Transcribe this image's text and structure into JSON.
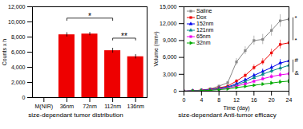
{
  "chart_data": [
    {
      "type": "bar",
      "categories": [
        "M(NIR)",
        "36nm",
        "72nm",
        "112nm",
        "136nm"
      ],
      "values": [
        null,
        8300,
        8400,
        6200,
        5400
      ],
      "errors": [
        null,
        280,
        220,
        320,
        280
      ],
      "color": "#EE0000",
      "ylabel": "Counts x h",
      "ylim": [
        0,
        12000
      ],
      "yticks": [
        0,
        2000,
        4000,
        6000,
        8000,
        10000,
        12000
      ],
      "caption": "size-dependant tumor distribution",
      "grid": false,
      "annotations": [
        {
          "text": "*",
          "x": [
            "36nm",
            "112nm"
          ],
          "y": [
            10200,
            10500
          ]
        },
        {
          "text": "**",
          "x": [
            "112nm",
            "136nm"
          ],
          "y": [
            7600,
            7850
          ]
        }
      ]
    },
    {
      "type": "line",
      "x": [
        0,
        2,
        4,
        6,
        8,
        10,
        12,
        14,
        16,
        18,
        20,
        22,
        24
      ],
      "series": [
        {
          "name": "Saline",
          "color": "#888888",
          "marker": "square",
          "values": [
            0,
            80,
            200,
            400,
            900,
            1500,
            5200,
            7200,
            9000,
            9200,
            10800,
            12500,
            12800
          ],
          "errors": [
            0,
            30,
            60,
            100,
            180,
            280,
            600,
            700,
            800,
            900,
            1000,
            1100,
            1400
          ]
        },
        {
          "name": "Dox",
          "color": "#EE0000",
          "marker": "square",
          "values": [
            0,
            80,
            180,
            350,
            600,
            900,
            1800,
            2800,
            4200,
            5200,
            6800,
            8300,
            8600
          ],
          "errors": [
            0,
            30,
            50,
            80,
            120,
            180,
            280,
            380,
            480,
            580,
            680,
            780,
            900
          ]
        },
        {
          "name": "152nm",
          "color": "#0000EE",
          "marker": "triangle",
          "values": [
            0,
            60,
            150,
            280,
            500,
            750,
            1300,
            2000,
            2800,
            3500,
            4200,
            5000,
            5400
          ],
          "errors": [
            0,
            25,
            45,
            70,
            110,
            160,
            220,
            280,
            380,
            460,
            560,
            660,
            760
          ]
        },
        {
          "name": "121nm",
          "color": "#008888",
          "marker": "triangle",
          "values": [
            0,
            55,
            130,
            250,
            450,
            680,
            1100,
            1700,
            2400,
            3000,
            3600,
            4100,
            4600
          ],
          "errors": [
            0,
            22,
            42,
            65,
            95,
            140,
            190,
            260,
            340,
            420,
            480,
            580,
            660
          ]
        },
        {
          "name": "65nm",
          "color": "#EE00EE",
          "marker": "square",
          "values": [
            0,
            50,
            110,
            210,
            360,
            560,
            900,
            1300,
            1750,
            2200,
            2600,
            2900,
            3100
          ],
          "errors": [
            0,
            18,
            35,
            55,
            80,
            120,
            165,
            220,
            280,
            350,
            400,
            450,
            520
          ]
        },
        {
          "name": "32nm",
          "color": "#00AA00",
          "marker": "triangle-right",
          "values": [
            0,
            40,
            90,
            160,
            270,
            410,
            640,
            840,
            1050,
            1250,
            1450,
            1650,
            1800
          ],
          "errors": [
            0,
            14,
            28,
            46,
            65,
            92,
            140,
            185,
            230,
            280,
            330,
            380,
            430
          ]
        }
      ],
      "xlabel": "Time (day)",
      "ylabel": "Volume (mm³)",
      "xlim": [
        0,
        24
      ],
      "xticks": [
        0,
        4,
        8,
        12,
        16,
        20,
        24
      ],
      "ylim": [
        0,
        15000
      ],
      "yticks": [
        0,
        3000,
        6000,
        9000,
        12000,
        15000
      ],
      "caption": "size-dependant Anti-tumor efficacy",
      "legend": "upper left",
      "grid": false,
      "annotations": [
        {
          "text": [
            "*",
            "*"
          ],
          "y": [
            13050,
            9000
          ]
        },
        {
          "text": [
            "#",
            "&"
          ],
          "y": [
            5550,
            3300
          ]
        }
      ]
    }
  ]
}
